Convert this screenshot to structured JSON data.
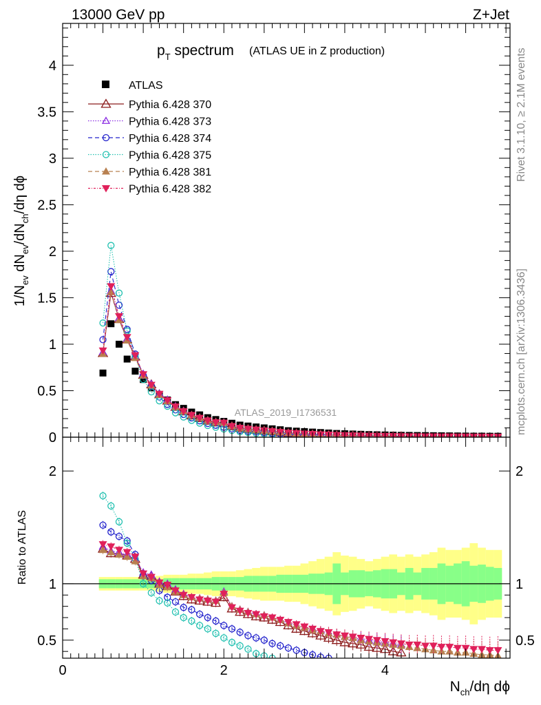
{
  "chart_data": {
    "type": "scatter",
    "header": {
      "left": "13000 GeV pp",
      "right": "Z+Jet"
    },
    "title": {
      "main": "p",
      "main_sub": "T",
      "main_rest": " spectrum",
      "suffix": "(ATLAS UE in Z production)"
    },
    "watermark": "ATLAS_2019_I1736531",
    "side_label_top": "Rivet 3.1.10, ≥ 2.1M events",
    "side_label_bottom": "mcplots.cern.ch [arXiv:1306.3436]",
    "ylabel_top": {
      "p1": "1/N",
      "s1": "ev",
      "p2": " dN",
      "s2": "ev",
      "p3": "/dN",
      "s3": "ch",
      "p4": "/dη dϕ"
    },
    "ylabel_bottom": "Ratio to ATLAS",
    "xlabel": {
      "p1": "N",
      "s1": "ch",
      "p2": "/dη dϕ"
    },
    "x_range": [
      0,
      5.55
    ],
    "y_range_top": [
      0,
      4.45
    ],
    "y_range_ratio": [
      0.34,
      2.3
    ],
    "x_ticks": [
      "0",
      "2",
      "4"
    ],
    "y_ticks_top": [
      "0",
      "0.5",
      "1",
      "1.5",
      "2",
      "2.5",
      "3",
      "3.5",
      "4"
    ],
    "y_ticks_ratio": [
      "0.5",
      "1",
      "2"
    ],
    "x": [
      0.5,
      0.6,
      0.7,
      0.8,
      0.9,
      1.0,
      1.1,
      1.2,
      1.3,
      1.4,
      1.5,
      1.6,
      1.7,
      1.8,
      1.9,
      2.0,
      2.1,
      2.2,
      2.3,
      2.4,
      2.5,
      2.6,
      2.7,
      2.8,
      2.9,
      3.0,
      3.1,
      3.2,
      3.3,
      3.4,
      3.5,
      3.6,
      3.7,
      3.8,
      3.9,
      4.0,
      4.1,
      4.2,
      4.3,
      4.4,
      4.5,
      4.6,
      4.7,
      4.8,
      4.9,
      5.0,
      5.1,
      5.2,
      5.3,
      5.4
    ],
    "atlas": [
      0.69,
      1.22,
      1.0,
      0.84,
      0.71,
      0.62,
      0.53,
      0.46,
      0.4,
      0.35,
      0.31,
      0.27,
      0.24,
      0.21,
      0.19,
      0.17,
      0.15,
      0.13,
      0.12,
      0.11,
      0.1,
      0.09,
      0.08,
      0.07,
      0.065,
      0.06,
      0.055,
      0.05,
      0.045,
      0.04,
      0.037,
      0.034,
      0.031,
      0.028,
      0.026,
      0.024,
      0.022,
      0.02,
      0.019,
      0.018,
      0.017,
      0.016,
      0.015,
      0.014,
      0.013,
      0.012,
      0.011,
      0.011,
      0.01,
      0.01
    ],
    "band_inner": [
      0.04,
      0.04,
      0.04,
      0.04,
      0.04,
      0.04,
      0.04,
      0.04,
      0.05,
      0.05,
      0.05,
      0.05,
      0.05,
      0.05,
      0.06,
      0.06,
      0.06,
      0.06,
      0.07,
      0.07,
      0.07,
      0.07,
      0.08,
      0.08,
      0.08,
      0.08,
      0.09,
      0.09,
      0.1,
      0.18,
      0.1,
      0.12,
      0.12,
      0.11,
      0.12,
      0.13,
      0.13,
      0.1,
      0.14,
      0.1,
      0.14,
      0.14,
      0.18,
      0.16,
      0.18,
      0.2,
      0.16,
      0.17,
      0.15,
      0.14
    ],
    "band_outer": [
      0.06,
      0.06,
      0.06,
      0.06,
      0.06,
      0.06,
      0.06,
      0.07,
      0.08,
      0.08,
      0.08,
      0.09,
      0.09,
      0.1,
      0.11,
      0.11,
      0.11,
      0.12,
      0.13,
      0.14,
      0.15,
      0.15,
      0.15,
      0.16,
      0.16,
      0.18,
      0.2,
      0.22,
      0.24,
      0.28,
      0.25,
      0.24,
      0.22,
      0.2,
      0.22,
      0.24,
      0.26,
      0.24,
      0.26,
      0.24,
      0.26,
      0.28,
      0.32,
      0.3,
      0.3,
      0.32,
      0.36,
      0.32,
      0.3,
      0.3
    ],
    "series": [
      {
        "name": "Pythia 6.428 370",
        "label": "Pythia 6.428 370",
        "color": "#8b1a1a",
        "marker": "triangle-open",
        "dash": "",
        "ratio": [
          1.31,
          1.27,
          1.27,
          1.25,
          1.22,
          1.08,
          1.07,
          1.0,
          0.98,
          0.93,
          0.89,
          0.86,
          0.85,
          0.84,
          0.83,
          0.88,
          0.78,
          0.75,
          0.73,
          0.71,
          0.7,
          0.68,
          0.66,
          0.63,
          0.6,
          0.58,
          0.56,
          0.54,
          0.52,
          0.5,
          0.48,
          0.47,
          0.46,
          0.44,
          0.43,
          0.42,
          0.4,
          0.39,
          null,
          null,
          null,
          null,
          null,
          null,
          null,
          null,
          null,
          null,
          null,
          null
        ]
      },
      {
        "name": "Pythia 6.428 373",
        "label": "Pythia 6.428 373",
        "color": "#8a2be2",
        "marker": "triangle-open-small",
        "dash": "1.5,2",
        "ratio": [
          1.33,
          1.29,
          1.28,
          1.26,
          1.23,
          1.1,
          1.08,
          1.02,
          1.0,
          0.95,
          0.91,
          0.88,
          0.87,
          0.86,
          0.85,
          0.93,
          0.8,
          0.77,
          0.75,
          0.73,
          0.72,
          0.7,
          0.68,
          0.65,
          0.63,
          0.61,
          0.6,
          0.58,
          0.56,
          0.55,
          0.53,
          0.52,
          0.51,
          0.5,
          0.49,
          0.48,
          0.47,
          0.46,
          null,
          null,
          null,
          null,
          null,
          null,
          null,
          null,
          null,
          null,
          null,
          null
        ]
      },
      {
        "name": "Pythia 6.428 374",
        "label": "Pythia 6.428 374",
        "color": "#2222cc",
        "marker": "circle-open",
        "dash": "6,4",
        "ratio": [
          1.52,
          1.46,
          1.42,
          1.38,
          1.26,
          1.07,
          1.03,
          0.94,
          0.88,
          0.84,
          0.79,
          0.77,
          0.73,
          0.7,
          0.67,
          0.63,
          0.6,
          0.57,
          0.54,
          0.52,
          0.5,
          0.47,
          0.45,
          0.43,
          0.41,
          0.39,
          0.37,
          0.35,
          0.34,
          null,
          null,
          null,
          null,
          null,
          null,
          null,
          null,
          null,
          null,
          null,
          null,
          null,
          null,
          null,
          null,
          null,
          null,
          null,
          null,
          null
        ]
      },
      {
        "name": "Pythia 6.428 375",
        "label": "Pythia 6.428 375",
        "color": "#20c0b0",
        "marker": "circle-open",
        "dash": "1.5,2",
        "ratio": [
          1.78,
          1.69,
          1.55,
          1.36,
          1.22,
          1.0,
          0.92,
          0.85,
          0.83,
          0.75,
          0.7,
          0.67,
          0.63,
          0.6,
          0.56,
          0.52,
          0.48,
          0.45,
          0.42,
          0.38,
          0.36,
          0.34,
          null,
          null,
          null,
          null,
          null,
          null,
          null,
          null,
          null,
          null,
          null,
          null,
          null,
          null,
          null,
          null,
          null,
          null,
          null,
          null,
          null,
          null,
          null,
          null,
          null,
          null,
          null,
          null
        ]
      },
      {
        "name": "Pythia 6.428 381",
        "label": "Pythia 6.428 381",
        "color": "#b88050",
        "marker": "triangle-filled",
        "dash": "6,4",
        "ratio": [
          1.3,
          1.28,
          1.26,
          1.24,
          1.2,
          1.07,
          1.05,
          0.99,
          0.97,
          0.93,
          0.9,
          0.88,
          0.87,
          0.86,
          0.85,
          0.92,
          0.8,
          0.77,
          0.75,
          0.73,
          0.72,
          0.7,
          0.68,
          0.65,
          0.63,
          0.61,
          0.59,
          0.58,
          0.56,
          0.55,
          0.53,
          0.52,
          0.5,
          0.49,
          0.48,
          0.47,
          0.46,
          0.45,
          0.44,
          0.43,
          0.42,
          0.41,
          0.4,
          0.4,
          0.39,
          0.39,
          0.38,
          0.37,
          0.37,
          0.36
        ]
      },
      {
        "name": "Pythia 6.428 382",
        "label": "Pythia 6.428 382",
        "color": "#e0205a",
        "marker": "triangle-down-filled",
        "dash": "3,2,1,2",
        "ratio": [
          1.35,
          1.33,
          1.3,
          1.28,
          1.24,
          1.09,
          1.06,
          1.01,
          0.99,
          0.94,
          0.9,
          0.88,
          0.86,
          0.85,
          0.84,
          0.91,
          0.79,
          0.76,
          0.74,
          0.73,
          0.71,
          0.7,
          0.68,
          0.66,
          0.64,
          0.62,
          0.6,
          0.58,
          0.57,
          0.55,
          0.54,
          0.53,
          0.52,
          0.51,
          0.5,
          0.49,
          0.48,
          0.47,
          0.46,
          0.46,
          0.45,
          0.45,
          0.44,
          0.44,
          0.43,
          0.43,
          0.42,
          0.42,
          0.41,
          0.41
        ]
      }
    ]
  },
  "legend_data_label": "ATLAS"
}
